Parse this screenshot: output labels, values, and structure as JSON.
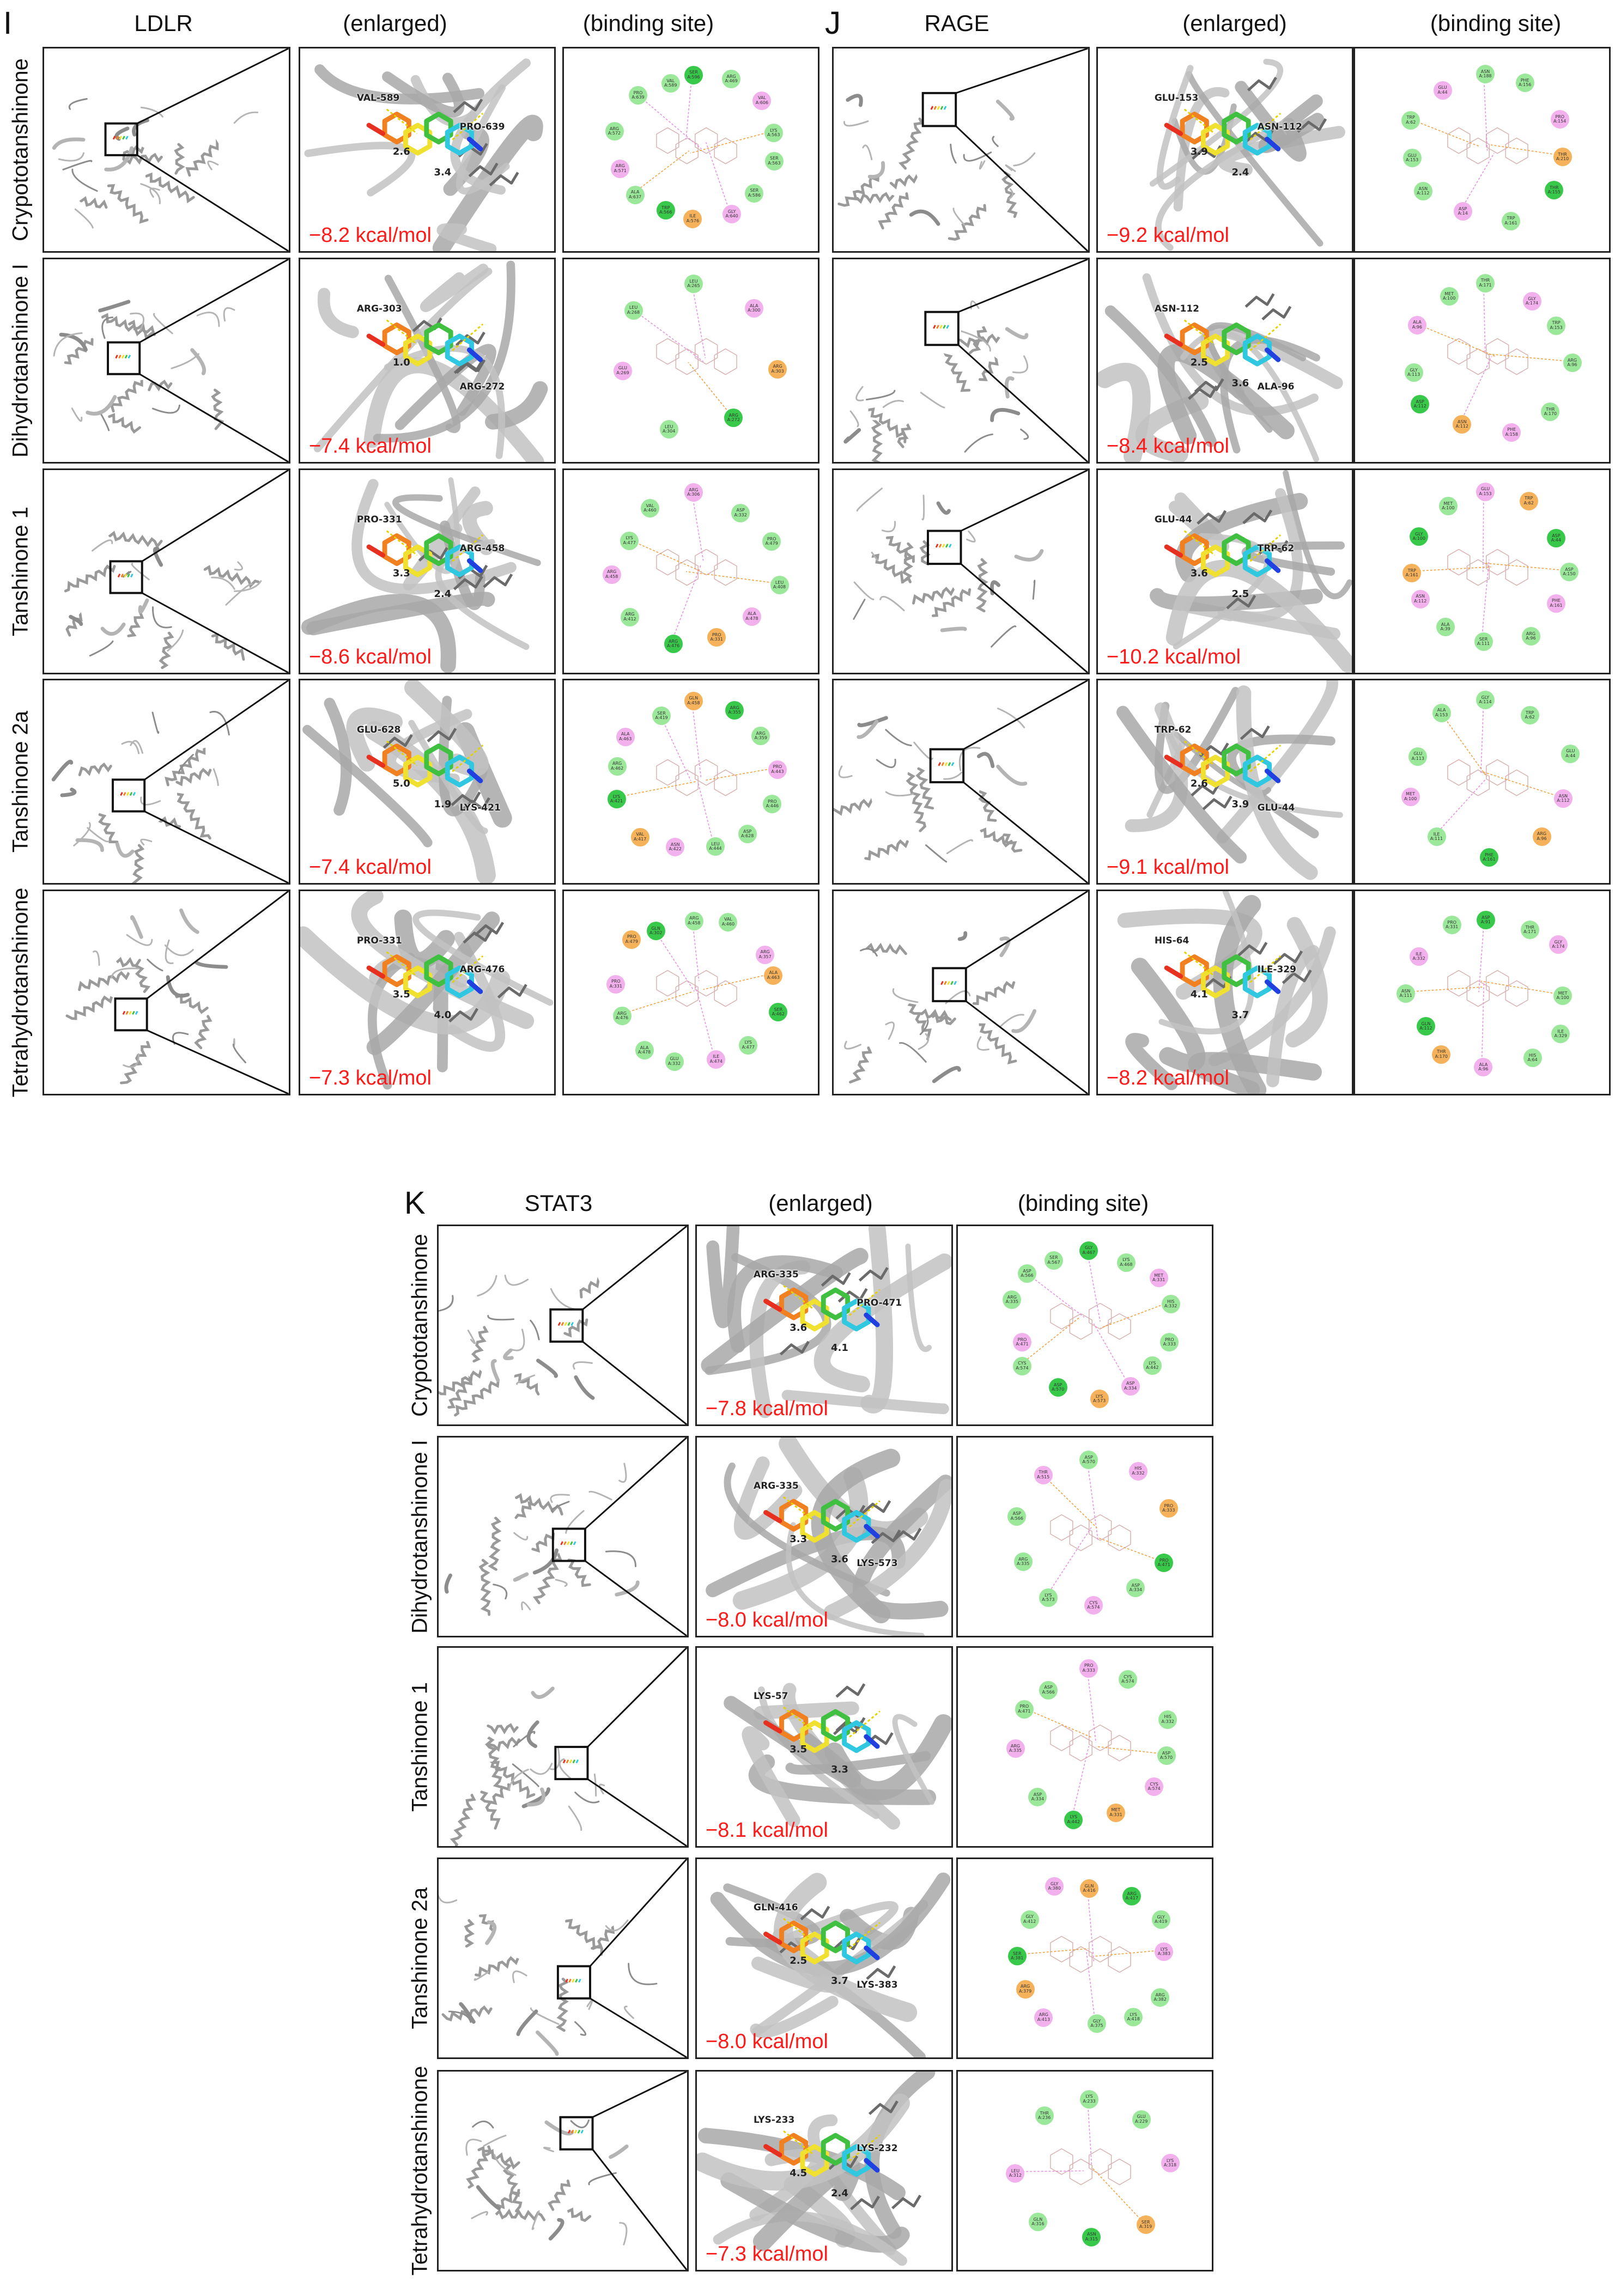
{
  "figure": {
    "panels": [
      {
        "letter": "I",
        "target": "LDLR",
        "col_enlarged": "(enlarged)",
        "col_binding": "(binding site)",
        "rows": [
          {
            "compound": "Crypototanshinone",
            "energy": "−8.2 kcal/mol",
            "residues": [
              "VAL-589",
              "PRO-639"
            ],
            "distances": [
              "2.6",
              "3.4"
            ],
            "site_residues": [
              "SER A:596",
              "ARG A:469",
              "VAL A:606",
              "LYS A:563",
              "SER A:563",
              "SER A:586",
              "GLY A:640",
              "ILE A:576",
              "TRP A:566",
              "ALA A:637",
              "ARG A:571",
              "ARG A:572",
              "PRO A:639",
              "VAL A:589"
            ]
          },
          {
            "compound": "Dihydrotanshinone I",
            "energy": "−7.4 kcal/mol",
            "residues": [
              "ARG-303",
              "ARG-272"
            ],
            "distances": [
              "1.0"
            ],
            "site_residues": [
              "LEU A:265",
              "ALA A:300",
              "ARG A:303",
              "ARG A:272",
              "LEU A:304",
              "GLU A:269",
              "LEU A:268"
            ]
          },
          {
            "compound": "Tanshinone 1",
            "energy": "−8.6 kcal/mol",
            "residues": [
              "PRO-331",
              "ARG-458"
            ],
            "distances": [
              "3.3",
              "2.4"
            ],
            "site_residues": [
              "ARG A:306",
              "ASP A:332",
              "PRO A:479",
              "LEU A:408",
              "ALA A:478",
              "PRO A:331",
              "ARG A:476",
              "ARG A:412",
              "ARG A:458",
              "LYS A:477",
              "VAL A:460"
            ]
          },
          {
            "compound": "Tanshinone 2a",
            "energy": "−7.4 kcal/mol",
            "residues": [
              "GLU-628",
              "LYS-421"
            ],
            "distances": [
              "5.0",
              "1.9"
            ],
            "site_residues": [
              "GLN A:458",
              "ARG A:355",
              "ARG A:359",
              "PRO A:443",
              "PRO A:446",
              "ASP A:628",
              "LEU A:444",
              "ASN A:422",
              "VAL A:417",
              "LYS A:421",
              "ARG A:462",
              "ALA A:463",
              "SER A:419"
            ]
          },
          {
            "compound": "Tetrahydrotanshinone",
            "energy": "−7.3 kcal/mol",
            "residues": [
              "PRO-331",
              "ARG-476"
            ],
            "distances": [
              "3.5",
              "4.0"
            ],
            "site_residues": [
              "ARG A:458",
              "VAL A:460",
              "ARG A:357",
              "ALA A:463",
              "SER A:462",
              "LYS A:477",
              "ILE A:474",
              "GLU A:332",
              "ALA A:478",
              "ARG A:476",
              "PRO A:331",
              "PRO A:479",
              "GLN A:302"
            ]
          }
        ]
      },
      {
        "letter": "J",
        "target": "RAGE",
        "col_enlarged": "(enlarged)",
        "col_binding": "(binding site)",
        "rows": [
          {
            "compound": "Crypototanshinone",
            "energy": "−9.2 kcal/mol",
            "residues": [
              "GLU-153",
              "ASN-112"
            ],
            "distances": [
              "3.9",
              "2.4"
            ],
            "site_residues": [
              "ASN A:188",
              "PHE A:156",
              "PRO A:154",
              "THR A:210",
              "THR A:155",
              "TRP A:161",
              "ASP A:14",
              "ASN A:112",
              "GLU A:153",
              "TRP A:62",
              "GLU A:44"
            ]
          },
          {
            "compound": "Dihydrotanshinone I",
            "energy": "−8.4 kcal/mol",
            "residues": [
              "ASN-112",
              "ALA-96"
            ],
            "distances": [
              "2.5",
              "3.6"
            ],
            "site_residues": [
              "THR A:171",
              "GLY A:174",
              "TRP A:153",
              "ARG A:96",
              "THR A:170",
              "PHE A:158",
              "ASN A:112",
              "ASP A:112",
              "GLY A:113",
              "ALA A:96",
              "MET A:100"
            ]
          },
          {
            "compound": "Tanshinone 1",
            "energy": "−10.2 kcal/mol",
            "residues": [
              "GLU-44",
              "TRP-62"
            ],
            "distances": [
              "3.6",
              "2.5"
            ],
            "site_residues": [
              "GLU A:153",
              "TRP A:62",
              "ASP A:44",
              "ASP A:150",
              "PHE A:161",
              "ARG A:96",
              "SER A:111",
              "ALA A:39",
              "ASN A:112",
              "TRP A:161",
              "GLY A:100",
              "MET A:100"
            ]
          },
          {
            "compound": "Tanshinone 2a",
            "energy": "−9.1 kcal/mol",
            "residues": [
              "TRP-62",
              "GLU-44"
            ],
            "distances": [
              "2.6",
              "3.9"
            ],
            "site_residues": [
              "GLY A:114",
              "TRP A:62",
              "GLU A:44",
              "ASN A:112",
              "ARG A:96",
              "PHE A:161",
              "ILE A:111",
              "MET A:100",
              "GLU A:113",
              "ALA A:153"
            ]
          },
          {
            "compound": "Tetrahydrotanshinone",
            "energy": "−8.2 kcal/mol",
            "residues": [
              "HIS-64",
              "ILE-329"
            ],
            "distances": [
              "4.1",
              "3.7"
            ],
            "site_residues": [
              "ASP A:91",
              "THR A:171",
              "GLY A:174",
              "MET A:100",
              "ILE A:329",
              "HIS A:64",
              "ALA A:96",
              "THR A:170",
              "GLN A:112",
              "ASN A:111",
              "ILE A:332",
              "PRO A:331"
            ]
          }
        ]
      },
      {
        "letter": "K",
        "target": "STAT3",
        "col_enlarged": "(enlarged)",
        "col_binding": "(binding site)",
        "rows": [
          {
            "compound": "Crypototanshinone",
            "energy": "−7.8 kcal/mol",
            "residues": [
              "ARG-335",
              "PRO-471"
            ],
            "distances": [
              "3.6",
              "4.1"
            ],
            "site_residues": [
              "GLY A:467",
              "LYS A:468",
              "MET A:331",
              "HIS A:332",
              "PRO A:333",
              "LYS A:442",
              "ASP A:334",
              "LYS A:573",
              "ASP A:570",
              "CYS A:574",
              "PRO A:471",
              "ARG A:335",
              "ASP A:566",
              "SER A:567"
            ]
          },
          {
            "compound": "Dihydrotanshinone I",
            "energy": "−8.0 kcal/mol",
            "residues": [
              "ARG-335",
              "LYS-573"
            ],
            "distances": [
              "3.3",
              "3.6"
            ],
            "site_residues": [
              "ASP A:570",
              "HIS A:332",
              "PRO A:333",
              "PRO A:471",
              "ASP A:334",
              "CYS A:574",
              "LYS A:573",
              "ARG A:335",
              "ASP A:566",
              "THR A:515"
            ]
          },
          {
            "compound": "Tanshinone 1",
            "energy": "−8.1 kcal/mol",
            "residues": [
              "LYS-57"
            ],
            "distances": [
              "3.5",
              "3.3"
            ],
            "site_residues": [
              "PRO A:333",
              "CYS A:574",
              "HIS A:332",
              "ASP A:570",
              "CYS A:574",
              "MET A:331",
              "LYS A:442",
              "ASP A:334",
              "ARG A:335",
              "PRO A:471",
              "ASP A:566"
            ]
          },
          {
            "compound": "Tanshinone 2a",
            "energy": "−8.0 kcal/mol",
            "residues": [
              "GLN-416",
              "LYS-383"
            ],
            "distances": [
              "2.5",
              "3.7"
            ],
            "site_residues": [
              "GLN A:416",
              "ARG A:417",
              "GLY A:419",
              "LYS A:383",
              "ARG A:382",
              "LYS A:418",
              "GLY A:375",
              "ARG A:413",
              "ARG A:379",
              "SER A:381",
              "GLY A:412",
              "GLY A:380"
            ]
          },
          {
            "compound": "Tetrahydrotanshinone",
            "energy": "−7.3 kcal/mol",
            "residues": [
              "LYS-233",
              "LYS-232"
            ],
            "distances": [
              "4.5",
              "2.4"
            ],
            "site_residues": [
              "LYS A:233",
              "GLU A:229",
              "LYS A:318",
              "SER A:319",
              "ASN A:315",
              "GLN A:316",
              "LEU A:312",
              "THR A:236"
            ]
          }
        ]
      }
    ]
  },
  "colors": {
    "energy_text": "#ff1a1a",
    "vdw_bubble": "#9be89a",
    "hbond_bubble": "#39c94a",
    "pi_cation_bubble": "#f5b25a",
    "pi_alkyl_bubble": "#f2b0ec",
    "protein_cartoon": "#a8a8a8",
    "ligand_rainbow": [
      "#e83020",
      "#f08020",
      "#f0e030",
      "#40c040",
      "#30c8e0",
      "#2040e0"
    ]
  },
  "icons": [
    "protein-ribbon-icon",
    "ligand-stick-icon",
    "interaction-2d-diagram-icon"
  ]
}
